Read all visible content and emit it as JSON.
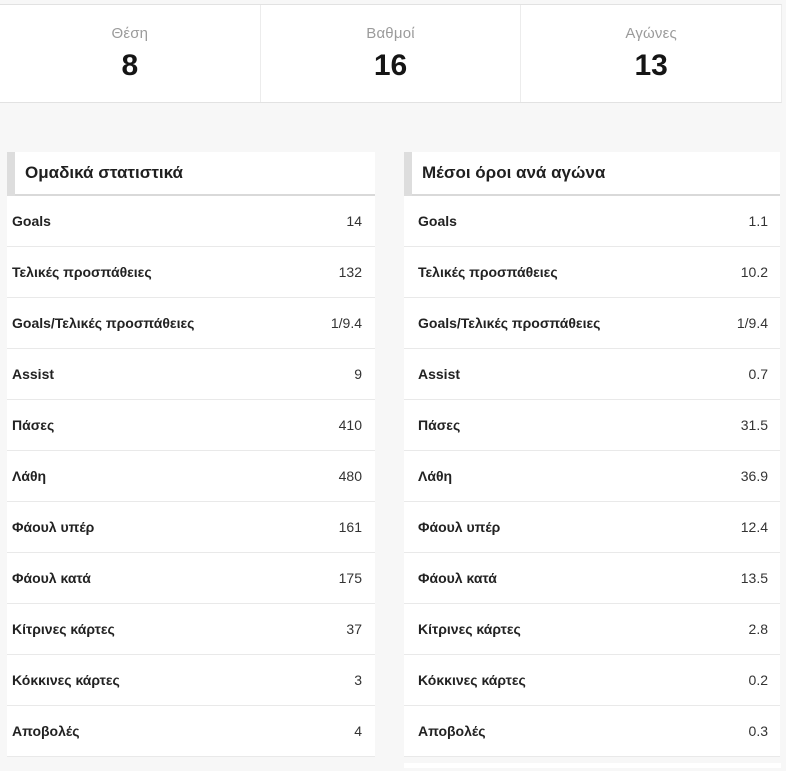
{
  "summary": {
    "items": [
      {
        "label": "Θέση",
        "value": "8"
      },
      {
        "label": "Βαθμοί",
        "value": "16"
      },
      {
        "label": "Αγώνες",
        "value": "13"
      }
    ]
  },
  "team_stats": {
    "title": "Ομαδικά στατιστικά",
    "rows": [
      {
        "label": "Goals",
        "value": "14"
      },
      {
        "label": "Τελικές προσπάθειες",
        "value": "132"
      },
      {
        "label": "Goals/Τελικές προσπάθειες",
        "value": "1/9.4"
      },
      {
        "label": "Assist",
        "value": "9"
      },
      {
        "label": "Πάσες",
        "value": "410"
      },
      {
        "label": "Λάθη",
        "value": "480"
      },
      {
        "label": "Φάουλ υπέρ",
        "value": "161"
      },
      {
        "label": "Φάουλ κατά",
        "value": "175"
      },
      {
        "label": "Κίτρινες κάρτες",
        "value": "37"
      },
      {
        "label": "Κόκκινες κάρτες",
        "value": "3"
      },
      {
        "label": "Αποβολές",
        "value": "4"
      }
    ]
  },
  "averages": {
    "title": "Μέσοι όροι ανά αγώνα",
    "rows": [
      {
        "label": "Goals",
        "value": "1.1"
      },
      {
        "label": "Τελικές προσπάθειες",
        "value": "10.2"
      },
      {
        "label": "Goals/Τελικές προσπάθειες",
        "value": "1/9.4"
      },
      {
        "label": "Assist",
        "value": "0.7"
      },
      {
        "label": "Πάσες",
        "value": "31.5"
      },
      {
        "label": "Λάθη",
        "value": "36.9"
      },
      {
        "label": "Φάουλ υπέρ",
        "value": "12.4"
      },
      {
        "label": "Φάουλ κατά",
        "value": "13.5"
      },
      {
        "label": "Κίτρινες κάρτες",
        "value": "2.8"
      },
      {
        "label": "Κόκκινες κάρτες",
        "value": "0.2"
      },
      {
        "label": "Αποβολές",
        "value": "0.3"
      }
    ]
  },
  "colors": {
    "page_background": "#f7f7f7",
    "card_background": "#ffffff",
    "border": "#e9e9e9",
    "header_accent": "#dddddd",
    "muted_label": "#9b9b9b",
    "text": "#222222"
  }
}
